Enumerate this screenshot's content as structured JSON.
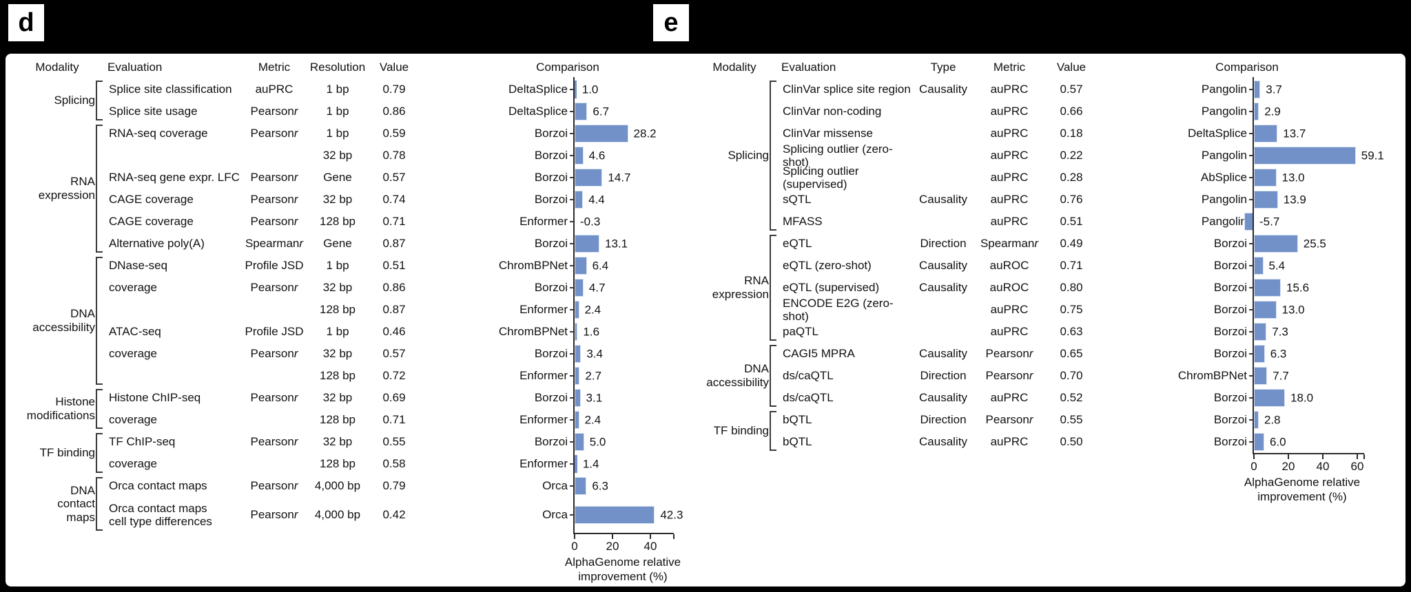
{
  "colors": {
    "background": "#000000",
    "sheet": "#ffffff",
    "bar": "#7191c8",
    "text": "#111111",
    "axis": "#2b2b2b"
  },
  "panel_d": {
    "panel_label": "d",
    "column_headers": [
      "Modality",
      "Evaluation",
      "Metric",
      "Resolution",
      "Value",
      "Comparison"
    ],
    "modality_groups": [
      {
        "label": "Splicing",
        "start_row": 0,
        "end_row": 1
      },
      {
        "label": "RNA expression",
        "start_row": 2,
        "end_row": 7
      },
      {
        "label": "DNA accessibility",
        "start_row": 8,
        "end_row": 13
      },
      {
        "label": "Histone modifications",
        "start_row": 14,
        "end_row": 15
      },
      {
        "label": "TF binding",
        "start_row": 16,
        "end_row": 17
      },
      {
        "label": "DNA contact maps",
        "start_row": 18,
        "end_row": 19
      }
    ],
    "rows": [
      {
        "evaluation": "Splice site classification",
        "metric": "auPRC",
        "resolution": "1 bp",
        "value": "0.79"
      },
      {
        "evaluation": "Splice site usage",
        "metric": "Pearson r",
        "resolution": "1 bp",
        "value": "0.86"
      },
      {
        "evaluation": "RNA-seq coverage",
        "metric": "Pearson r",
        "resolution": "1 bp",
        "value": "0.59"
      },
      {
        "evaluation": "",
        "metric": "",
        "resolution": "32 bp",
        "value": "0.78"
      },
      {
        "evaluation": "RNA-seq gene expr. LFC",
        "metric": "Pearson r",
        "resolution": "Gene",
        "value": "0.57"
      },
      {
        "evaluation": "CAGE coverage",
        "metric": "Pearson r",
        "resolution": "32 bp",
        "value": "0.74"
      },
      {
        "evaluation": "CAGE coverage",
        "metric": "Pearson r",
        "resolution": "128 bp",
        "value": "0.71"
      },
      {
        "evaluation": "Alternative poly(A)",
        "metric": "Spearman r",
        "resolution": "Gene",
        "value": "0.87"
      },
      {
        "evaluation": "DNase-seq",
        "metric": "Profile JSD",
        "resolution": "1 bp",
        "value": "0.51"
      },
      {
        "evaluation": "coverage",
        "metric": "Pearson r",
        "resolution": "32 bp",
        "value": "0.86"
      },
      {
        "evaluation": "",
        "metric": "",
        "resolution": "128 bp",
        "value": "0.87"
      },
      {
        "evaluation": "ATAC-seq",
        "metric": "Profile JSD",
        "resolution": "1 bp",
        "value": "0.46"
      },
      {
        "evaluation": "coverage",
        "metric": "Pearson r",
        "resolution": "32 bp",
        "value": "0.57"
      },
      {
        "evaluation": "",
        "metric": "",
        "resolution": "128 bp",
        "value": "0.72"
      },
      {
        "evaluation": "Histone ChIP-seq",
        "metric": "Pearson r",
        "resolution": "32 bp",
        "value": "0.69"
      },
      {
        "evaluation": "coverage",
        "metric": "",
        "resolution": "128 bp",
        "value": "0.71"
      },
      {
        "evaluation": "TF ChIP-seq",
        "metric": "Pearson r",
        "resolution": "32 bp",
        "value": "0.55"
      },
      {
        "evaluation": "coverage",
        "metric": "",
        "resolution": "128 bp",
        "value": "0.58"
      },
      {
        "evaluation": "Orca contact maps",
        "metric": "Pearson r",
        "resolution": "4,000 bp",
        "value": "0.79"
      },
      {
        "evaluation": "Orca contact maps\ncell type differences",
        "metric": "Pearson r",
        "resolution": "4,000 bp",
        "value": "0.42"
      }
    ]
  },
  "panel_e": {
    "panel_label": "e",
    "column_headers": [
      "Modality",
      "Evaluation",
      "Type",
      "Metric",
      "Value",
      "Comparison"
    ],
    "modality_groups": [
      {
        "label": "Splicing",
        "start_row": 0,
        "end_row": 6
      },
      {
        "label": "RNA expression",
        "start_row": 7,
        "end_row": 11
      },
      {
        "label": "DNA accessibility",
        "start_row": 12,
        "end_row": 14
      },
      {
        "label": "TF binding",
        "start_row": 15,
        "end_row": 16
      }
    ],
    "rows": [
      {
        "evaluation": "ClinVar splice site region",
        "type": "Causality",
        "metric": "auPRC",
        "value": "0.57"
      },
      {
        "evaluation": "ClinVar non-coding",
        "type": "",
        "metric": "auPRC",
        "value": "0.66"
      },
      {
        "evaluation": "ClinVar missense",
        "type": "",
        "metric": "auPRC",
        "value": "0.18"
      },
      {
        "evaluation": "Splicing outlier (zero-shot)",
        "type": "",
        "metric": "auPRC",
        "value": "0.22"
      },
      {
        "evaluation": "Splicing outlier (supervised)",
        "type": "",
        "metric": "auPRC",
        "value": "0.28"
      },
      {
        "evaluation": "sQTL",
        "type": "Causality",
        "metric": "auPRC",
        "value": "0.76"
      },
      {
        "evaluation": "MFASS",
        "type": "",
        "metric": "auPRC",
        "value": "0.51"
      },
      {
        "evaluation": "eQTL",
        "type": "Direction",
        "metric": "Spearman r",
        "value": "0.49"
      },
      {
        "evaluation": "eQTL (zero-shot)",
        "type": "Causality",
        "metric": "auROC",
        "value": "0.71"
      },
      {
        "evaluation": "eQTL (supervised)",
        "type": "Causality",
        "metric": "auROC",
        "value": "0.80"
      },
      {
        "evaluation": "ENCODE E2G (zero-shot)",
        "type": "",
        "metric": "auPRC",
        "value": "0.75"
      },
      {
        "evaluation": "paQTL",
        "type": "",
        "metric": "auPRC",
        "value": "0.63"
      },
      {
        "evaluation": "CAGI5 MPRA",
        "type": "Causality",
        "metric": "Pearson r",
        "value": "0.65"
      },
      {
        "evaluation": "ds/caQTL",
        "type": "Direction",
        "metric": "Pearson r",
        "value": "0.70"
      },
      {
        "evaluation": "ds/caQTL",
        "type": "Causality",
        "metric": "auPRC",
        "value": "0.52"
      },
      {
        "evaluation": "bQTL",
        "type": "Direction",
        "metric": "Pearson r",
        "value": "0.55"
      },
      {
        "evaluation": "bQTL",
        "type": "Causality",
        "metric": "auPRC",
        "value": "0.50"
      }
    ]
  },
  "chart_data": [
    {
      "panel": "d",
      "type": "bar",
      "orientation": "horizontal",
      "title": "",
      "xlabel": "AlphaGenome relative improvement (%)",
      "categories": [
        "DeltaSplice",
        "DeltaSplice",
        "Borzoi",
        "Borzoi",
        "Borzoi",
        "Borzoi",
        "Enformer",
        "Borzoi",
        "ChromBPNet",
        "Borzoi",
        "Enformer",
        "ChromBPNet",
        "Borzoi",
        "Enformer",
        "Borzoi",
        "Enformer",
        "Borzoi",
        "Enformer",
        "Orca",
        "Orca"
      ],
      "values": [
        1.0,
        6.7,
        28.2,
        4.6,
        14.7,
        4.4,
        -0.3,
        13.1,
        6.4,
        4.7,
        2.4,
        1.6,
        3.4,
        2.7,
        3.1,
        2.4,
        5.0,
        1.4,
        6.3,
        42.3
      ],
      "xticks": [
        0,
        20,
        40
      ],
      "xlim": [
        -2,
        53
      ],
      "grid": false,
      "legend": false,
      "bar_color": "#7191c8"
    },
    {
      "panel": "e",
      "type": "bar",
      "orientation": "horizontal",
      "title": "",
      "xlabel": "AlphaGenome relative improvement (%)",
      "categories": [
        "Pangolin",
        "Pangolin",
        "DeltaSplice",
        "Pangolin",
        "AbSplice",
        "Pangolin",
        "Pangolin",
        "Borzoi",
        "Borzoi",
        "Borzoi",
        "Borzoi",
        "Borzoi",
        "Borzoi",
        "ChromBPNet",
        "Borzoi",
        "Borzoi",
        "Borzoi"
      ],
      "values": [
        3.7,
        2.9,
        13.7,
        59.1,
        13.0,
        13.9,
        -5.7,
        25.5,
        5.4,
        15.6,
        13.0,
        7.3,
        6.3,
        7.7,
        18.0,
        2.8,
        6.0
      ],
      "xticks": [
        0,
        20,
        40,
        60
      ],
      "xlim": [
        -8,
        65
      ],
      "grid": false,
      "legend": false,
      "bar_color": "#7191c8"
    }
  ]
}
